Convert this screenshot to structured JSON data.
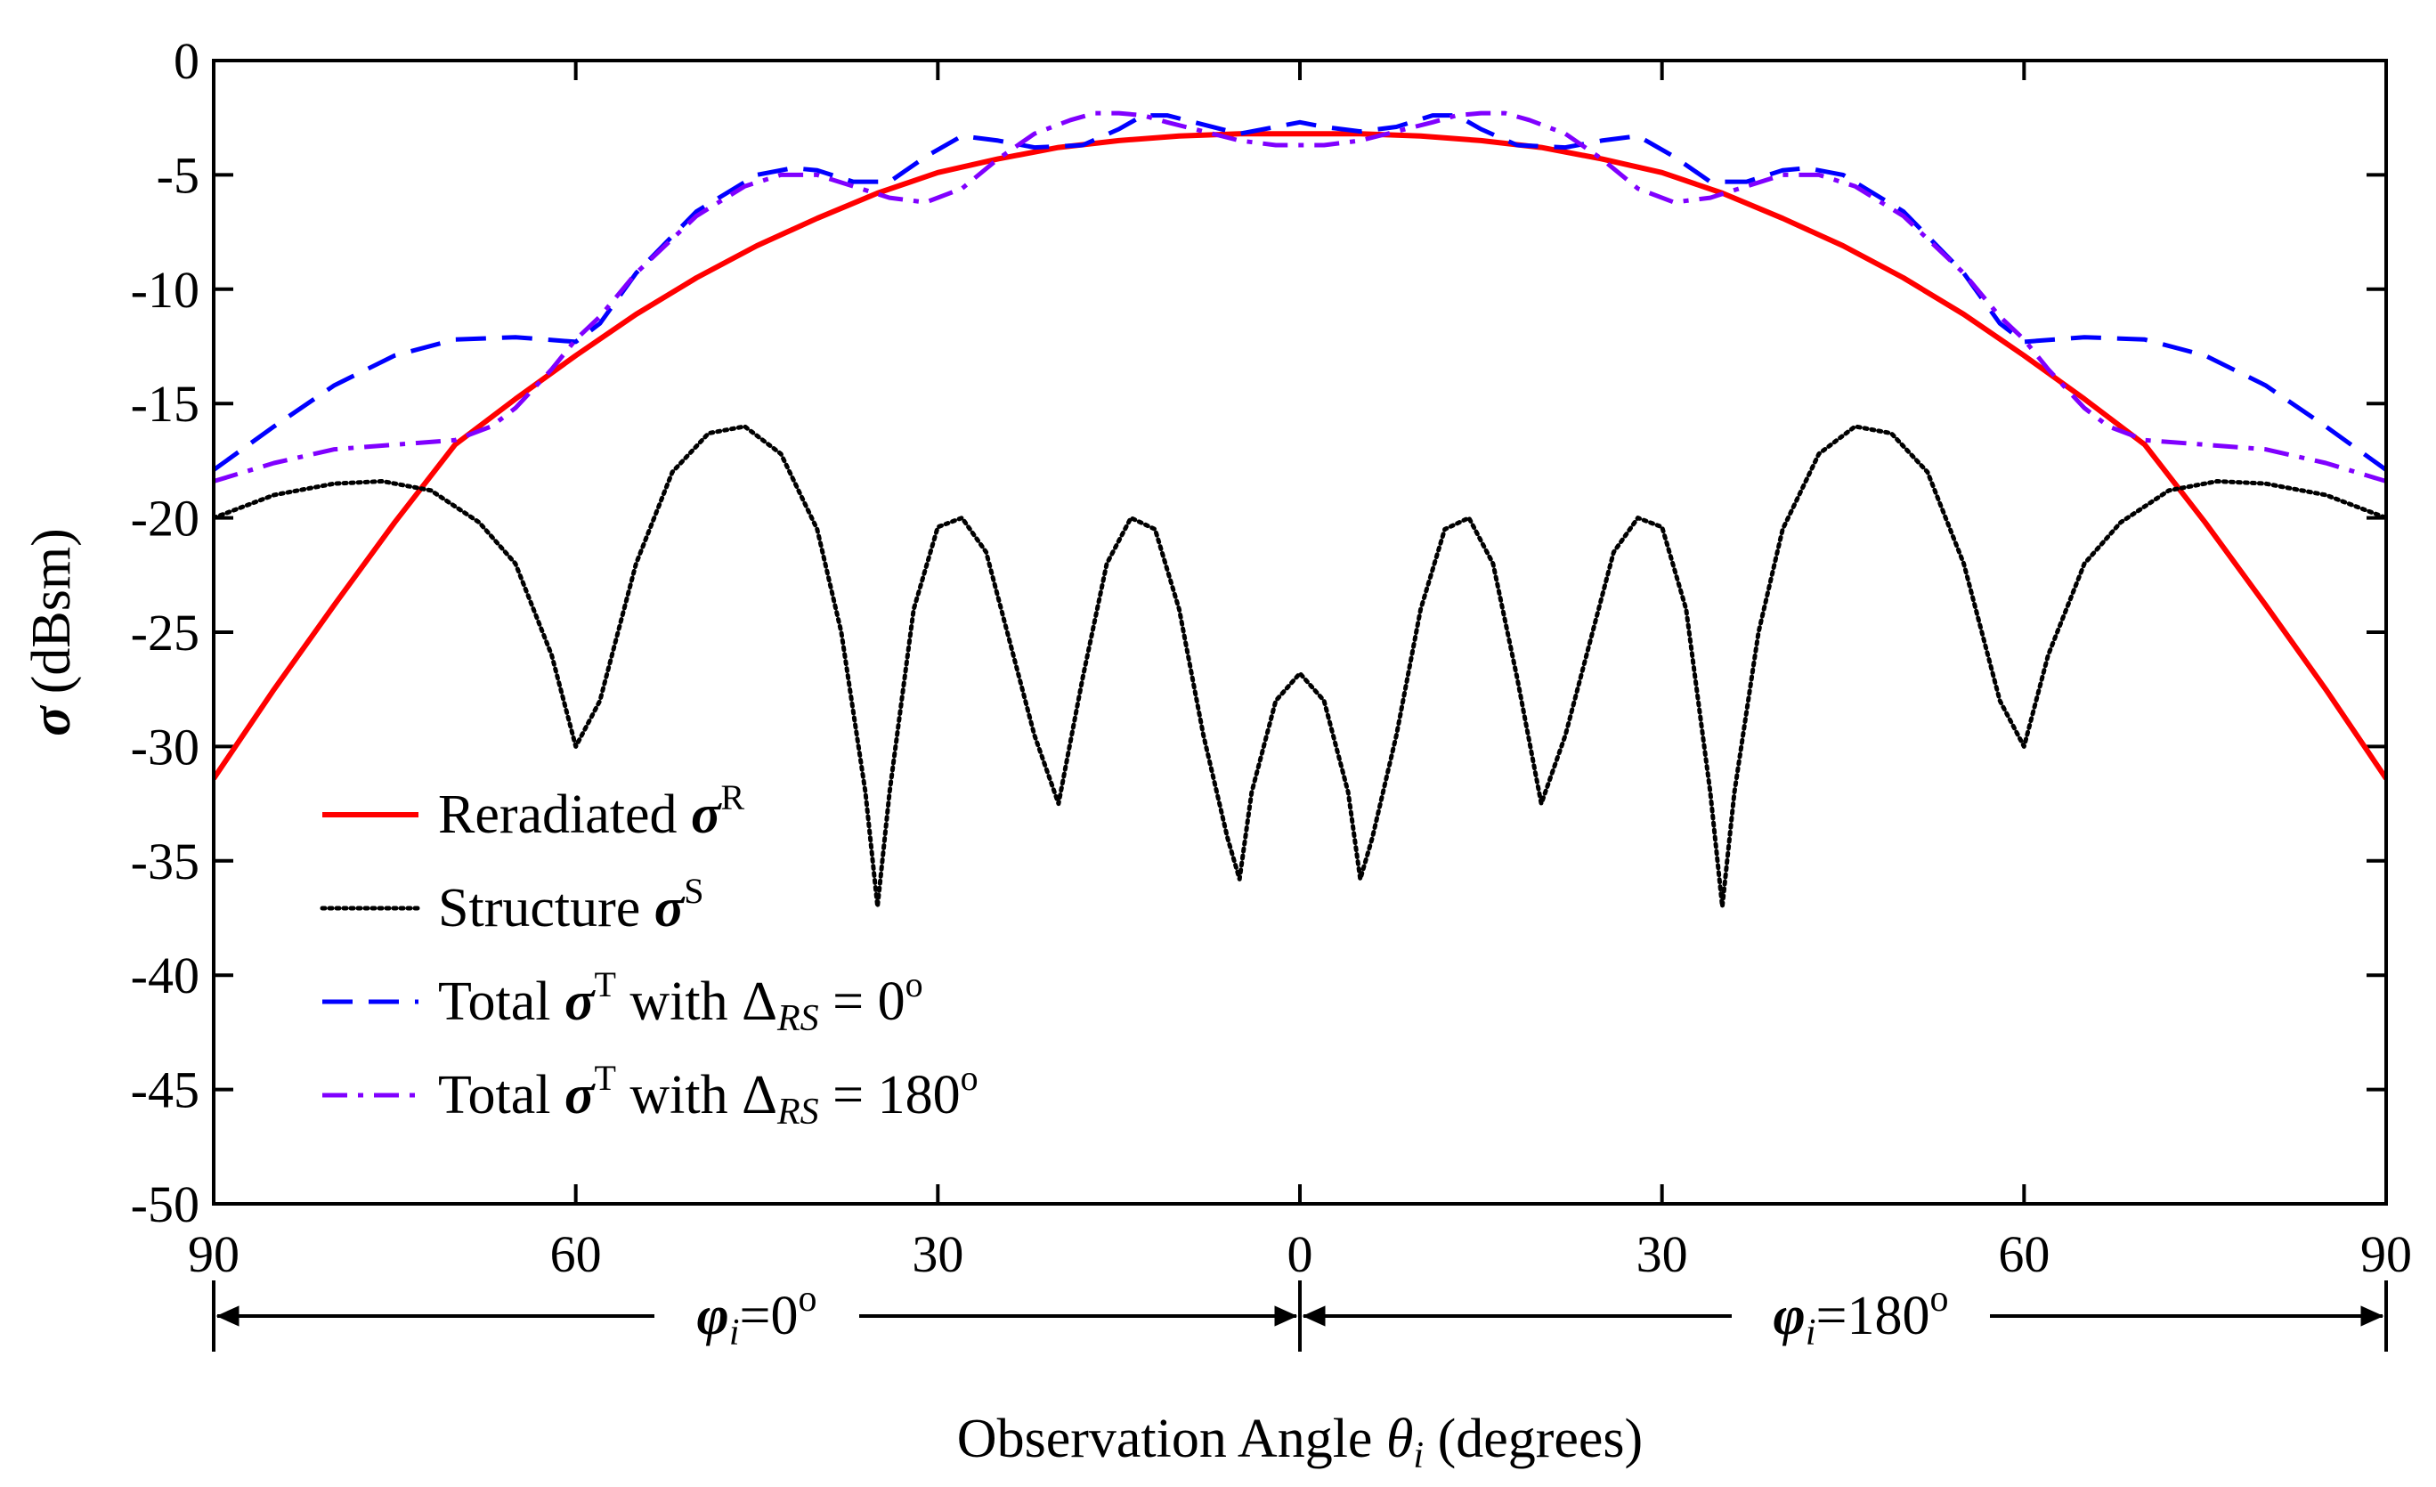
{
  "chart_data": {
    "type": "line",
    "ylabel": "σ (dBsm)",
    "ylabel_symbol": "σ",
    "ylabel_unit": "(dBsm)",
    "xlabel": "Observation Angle θi (degrees)",
    "xlabel_prefix": "Observation Angle ",
    "xlabel_symbol": "θ",
    "xlabel_sub": "i",
    "xlabel_suffix": " (degrees)",
    "xlim": [
      -90,
      90
    ],
    "ylim": [
      -50,
      0
    ],
    "x_ticks": [
      -90,
      -60,
      -30,
      0,
      30,
      60,
      90
    ],
    "x_tick_labels": [
      "90",
      "60",
      "30",
      "0",
      "30",
      "60",
      "90"
    ],
    "y_ticks": [
      0,
      -5,
      -10,
      -15,
      -20,
      -25,
      -30,
      -35,
      -40,
      -45,
      -50
    ],
    "y_tick_labels": [
      "0",
      "-5",
      "-10",
      "-15",
      "-20",
      "-25",
      "-30",
      "-35",
      "-40",
      "-45",
      "-50"
    ],
    "regions": [
      {
        "name": "phi0",
        "symbol": "φ",
        "sub": "i",
        "value": "=0",
        "sup": "o",
        "range": [
          -90,
          0
        ]
      },
      {
        "name": "phi180",
        "symbol": "φ",
        "sub": "i",
        "value": "=180",
        "sup": "o",
        "range": [
          0,
          90
        ]
      }
    ],
    "legend_position": "bottom-left",
    "series": [
      {
        "name": "Reradiated σR",
        "label_text": "Reradiated ",
        "label_symbol": "σ",
        "label_sup": "R",
        "label_rest": "",
        "label_sub": "",
        "label_tail": "",
        "color": "#ff0000",
        "style": "solid",
        "x": [
          -90,
          -85,
          -80,
          -75,
          -70,
          -65,
          -60,
          -55,
          -50,
          -45,
          -40,
          -35,
          -30,
          -25,
          -20,
          -15,
          -10,
          -5,
          0,
          5,
          10,
          15,
          20,
          25,
          30,
          35,
          40,
          45,
          50,
          55,
          60,
          65,
          70,
          75,
          80,
          85,
          90
        ],
        "values": [
          -31.4,
          -27.5,
          -23.8,
          -20.2,
          -16.8,
          -14.8,
          -12.9,
          -11.1,
          -9.5,
          -8.1,
          -6.9,
          -5.8,
          -4.9,
          -4.3,
          -3.8,
          -3.5,
          -3.3,
          -3.2,
          -3.2,
          -3.2,
          -3.3,
          -3.5,
          -3.8,
          -4.3,
          -4.9,
          -5.8,
          -6.9,
          -8.1,
          -9.5,
          -11.1,
          -12.9,
          -14.8,
          -16.8,
          -20.2,
          -23.8,
          -27.5,
          -31.4
        ]
      },
      {
        "name": "Structure σS",
        "label_text": "Structure ",
        "label_symbol": "σ",
        "label_sup": "S",
        "label_rest": "",
        "label_sub": "",
        "label_tail": "",
        "color": "#000000",
        "style": "dotted",
        "x": [
          -90,
          -85,
          -80,
          -76,
          -72,
          -68,
          -65,
          -62,
          -60,
          -58,
          -55,
          -52,
          -49,
          -46,
          -43,
          -40,
          -38,
          -36,
          -35,
          -34,
          -32,
          -30,
          -28,
          -26,
          -24,
          -22,
          -20,
          -18,
          -16,
          -14,
          -12,
          -10,
          -8,
          -6,
          -5,
          -4,
          -2,
          0,
          2,
          4,
          5,
          6,
          8,
          10,
          12,
          14,
          16,
          18,
          20,
          22,
          24,
          26,
          28,
          30,
          32,
          34,
          35,
          36,
          38,
          40,
          43,
          46,
          49,
          52,
          55,
          58,
          60,
          62,
          65,
          68,
          72,
          76,
          80,
          85,
          90
        ],
        "values": [
          -20.0,
          -19.0,
          -18.5,
          -18.4,
          -18.8,
          -20.2,
          -22.0,
          -26.0,
          -30.0,
          -28.0,
          -22.0,
          -18.0,
          -16.3,
          -16.0,
          -17.2,
          -20.5,
          -25.0,
          -32.0,
          -37.0,
          -32.0,
          -24.0,
          -20.4,
          -20.0,
          -21.5,
          -25.5,
          -29.5,
          -32.5,
          -27.0,
          -22.0,
          -20.0,
          -20.5,
          -24.0,
          -29.5,
          -34.0,
          -35.8,
          -32.0,
          -28.0,
          -26.8,
          -28.0,
          -32.0,
          -35.8,
          -34.0,
          -29.5,
          -24.0,
          -20.5,
          -20.0,
          -22.0,
          -27.0,
          -32.5,
          -29.5,
          -25.5,
          -21.5,
          -20.0,
          -20.4,
          -24.0,
          -32.0,
          -37.0,
          -32.0,
          -25.0,
          -20.5,
          -17.2,
          -16.0,
          -16.3,
          -18.0,
          -22.0,
          -28.0,
          -30.0,
          -26.0,
          -22.0,
          -20.2,
          -18.8,
          -18.4,
          -18.5,
          -19.0,
          -20.0
        ]
      },
      {
        "name": "Total σT with ΔRS = 0o",
        "label_text": "Total ",
        "label_symbol": "σ",
        "label_sup": "T",
        "label_rest": " with Δ",
        "label_sub": "RS",
        "label_tail": " = 0",
        "label_tail_sup": "o",
        "color": "#0000ff",
        "style": "dashed",
        "x": [
          -90,
          -85,
          -80,
          -75,
          -70,
          -65,
          -60,
          -58,
          -55,
          -50,
          -45,
          -42,
          -40,
          -37,
          -34,
          -31,
          -28,
          -25,
          -22,
          -18,
          -15,
          -13,
          -11,
          -8,
          -5,
          -2,
          0,
          2,
          5,
          8,
          11,
          13,
          15,
          18,
          22,
          25,
          28,
          31,
          34,
          37,
          40,
          42,
          45,
          50,
          55,
          58,
          60,
          65,
          70,
          75,
          80,
          85,
          90
        ],
        "values": [
          -17.9,
          -16.0,
          -14.2,
          -12.9,
          -12.2,
          -12.1,
          -12.3,
          -11.5,
          -9.3,
          -6.6,
          -5.0,
          -4.7,
          -4.8,
          -5.3,
          -5.3,
          -4.2,
          -3.3,
          -3.5,
          -3.8,
          -3.7,
          -3.0,
          -2.4,
          -2.4,
          -2.8,
          -3.2,
          -2.9,
          -2.7,
          -2.9,
          -3.1,
          -2.9,
          -2.4,
          -2.4,
          -3.0,
          -3.7,
          -3.8,
          -3.5,
          -3.3,
          -4.2,
          -5.3,
          -5.3,
          -4.8,
          -4.7,
          -5.0,
          -6.6,
          -9.3,
          -11.5,
          -12.3,
          -12.1,
          -12.2,
          -12.9,
          -14.2,
          -16.0,
          -17.9
        ]
      },
      {
        "name": "Total σT with ΔRS = 180o",
        "label_text": "Total ",
        "label_symbol": "σ",
        "label_sup": "T",
        "label_rest": " with Δ",
        "label_sub": "RS",
        "label_tail": " = 180",
        "label_tail_sup": "o",
        "color": "#8000ff",
        "style": "dashdot",
        "x": [
          -90,
          -85,
          -80,
          -75,
          -70,
          -67,
          -65,
          -62,
          -60,
          -58,
          -55,
          -50,
          -46,
          -43,
          -40,
          -37,
          -34,
          -31,
          -28,
          -25,
          -22,
          -19,
          -17,
          -15,
          -13,
          -11,
          -8,
          -5,
          -2,
          0,
          2,
          5,
          8,
          11,
          13,
          15,
          17,
          19,
          22,
          25,
          28,
          31,
          34,
          37,
          40,
          43,
          46,
          50,
          55,
          58,
          60,
          62,
          65,
          67,
          70,
          75,
          80,
          85,
          90
        ],
        "values": [
          -18.4,
          -17.6,
          -17.0,
          -16.8,
          -16.6,
          -16.0,
          -15.2,
          -13.5,
          -12.2,
          -11.2,
          -9.3,
          -6.8,
          -5.5,
          -5.0,
          -5.0,
          -5.5,
          -6.0,
          -6.2,
          -5.6,
          -4.3,
          -3.2,
          -2.6,
          -2.3,
          -2.3,
          -2.4,
          -2.7,
          -3.1,
          -3.5,
          -3.7,
          -3.7,
          -3.7,
          -3.5,
          -3.1,
          -2.7,
          -2.4,
          -2.3,
          -2.3,
          -2.6,
          -3.2,
          -4.3,
          -5.6,
          -6.2,
          -6.0,
          -5.5,
          -5.0,
          -5.0,
          -5.5,
          -6.8,
          -9.3,
          -11.2,
          -12.2,
          -13.5,
          -15.2,
          -16.0,
          -16.6,
          -16.8,
          -17.0,
          -17.6,
          -18.4
        ]
      }
    ]
  }
}
